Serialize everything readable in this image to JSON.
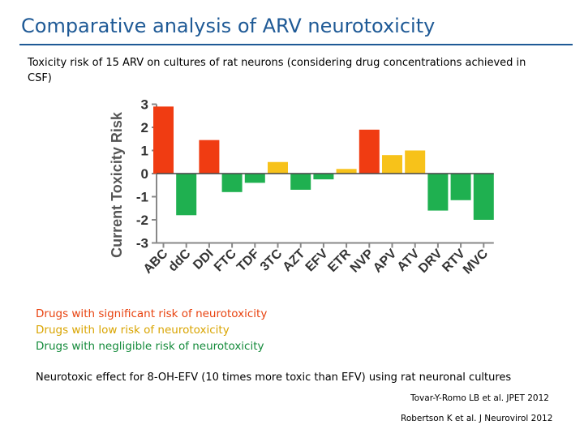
{
  "header": {
    "title": "Comparative analysis of ARV neurotoxicity",
    "subtitle": "Toxicity risk of 15 ARV on cultures of rat neurons (considering drug concentrations achieved in CSF)"
  },
  "legend": {
    "significant": "Drugs with significant risk of neurotoxicity",
    "low": "Drugs with low risk of neurotoxicity",
    "negligible": "Drugs with negligible risk of neurotoxicity"
  },
  "note": "Neurotoxic effect for 8-OH-EFV (10 times more toxic than EFV) using rat neuronal cultures",
  "references": [
    "Tovar-Y-Romo LB et al. JPET 2012",
    "Robertson K et al. J Neurovirol 2012"
  ],
  "colors": {
    "significant": "#f03c12",
    "low": "#f7c21a",
    "negligible": "#1fb050",
    "title": "#1f5a96",
    "axis": "#888888"
  },
  "chart_data": {
    "type": "bar",
    "title": "",
    "xlabel": "",
    "ylabel": "Current Toxicity Risk",
    "ylim": [
      -3,
      3
    ],
    "yticks": [
      3,
      2,
      1,
      0,
      -1,
      -2,
      -3
    ],
    "categories": [
      "ABC",
      "ddC",
      "DDI",
      "FTC",
      "TDF",
      "3TC",
      "AZT",
      "EFV",
      "ETR",
      "NVP",
      "APV",
      "ATV",
      "DRV",
      "RTV",
      "MVC"
    ],
    "values": [
      2.9,
      -1.8,
      1.45,
      -0.8,
      -0.4,
      0.5,
      -0.7,
      -0.25,
      0.2,
      1.9,
      0.8,
      1.0,
      -1.6,
      -1.15,
      -2.0
    ],
    "risk": [
      "significant",
      "negligible",
      "significant",
      "negligible",
      "negligible",
      "low",
      "negligible",
      "negligible",
      "low",
      "significant",
      "low",
      "low",
      "negligible",
      "negligible",
      "negligible"
    ]
  }
}
